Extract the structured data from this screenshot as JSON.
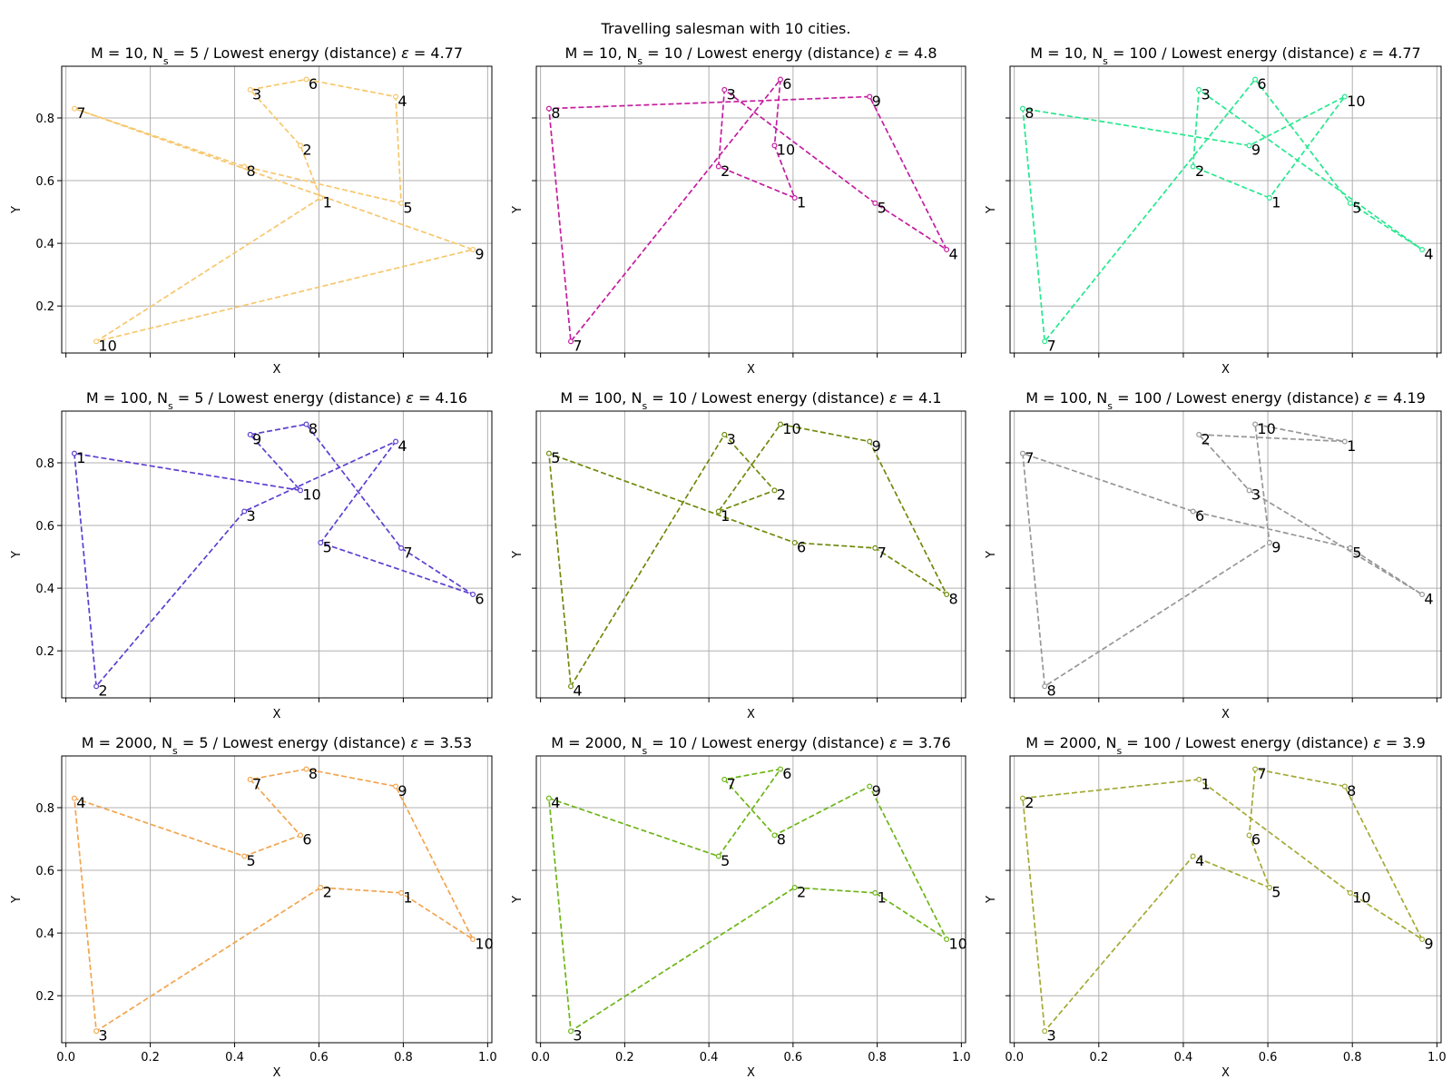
{
  "suptitle": "Travelling salesman with 10 cities.",
  "axes": {
    "xlabel": "X",
    "ylabel": "Y",
    "xlim": [
      -0.01,
      1.01
    ],
    "ylim": [
      0.05,
      0.965
    ],
    "xticks": [
      "0.0",
      "0.2",
      "0.4",
      "0.6",
      "0.8",
      "1.0"
    ],
    "yticks": [
      "0.2",
      "0.4",
      "0.6",
      "0.8"
    ],
    "grid": true
  },
  "cities": {
    "A": [
      0.437,
      0.89
    ],
    "B": [
      0.57,
      0.923
    ],
    "C": [
      0.782,
      0.868
    ],
    "D": [
      0.02,
      0.83
    ],
    "E": [
      0.556,
      0.712
    ],
    "F": [
      0.423,
      0.645
    ],
    "G": [
      0.604,
      0.545
    ],
    "H": [
      0.795,
      0.528
    ],
    "I": [
      0.965,
      0.38
    ],
    "J": [
      0.072,
      0.087
    ]
  },
  "chart_data": [
    {
      "type": "line",
      "title_prefix": "M = 10, N",
      "title_sub": "s",
      "title_mid": " = 5 / Lowest energy (distance) ",
      "title_eps": "ε",
      "title_value": " = 4.77",
      "color": "#f6c76e",
      "route": [
        "G",
        "E",
        "A",
        "B",
        "C",
        "H",
        "F",
        "D",
        "I",
        "J"
      ],
      "labels": [
        "1",
        "2",
        "3",
        "6",
        "4",
        "5",
        "8",
        "7",
        "9",
        "10"
      ]
    },
    {
      "type": "line",
      "title_prefix": "M = 10, N",
      "title_sub": "s",
      "title_mid": " = 10 / Lowest energy (distance) ",
      "title_eps": "ε",
      "title_value": " = 4.8",
      "color": "#c41d9f",
      "route": [
        "G",
        "F",
        "A",
        "H",
        "I",
        "C",
        "D",
        "J",
        "B",
        "E"
      ],
      "labels": [
        "1",
        "2",
        "3",
        "5",
        "4",
        "9",
        "8",
        "7",
        "6",
        "10"
      ]
    },
    {
      "type": "line",
      "title_prefix": "M = 10, N",
      "title_sub": "s",
      "title_mid": " = 100 / Lowest energy (distance) ",
      "title_eps": "ε",
      "title_value": " = 4.77",
      "color": "#27e88f",
      "route": [
        "G",
        "F",
        "A",
        "I",
        "H",
        "B",
        "J",
        "D",
        "E",
        "C"
      ],
      "labels": [
        "1",
        "2",
        "3",
        "4",
        "5",
        "6",
        "7",
        "8",
        "9",
        "10"
      ]
    },
    {
      "type": "line",
      "title_prefix": "M = 100, N",
      "title_sub": "s",
      "title_mid": " = 5 / Lowest energy (distance) ",
      "title_eps": "ε",
      "title_value": " = 4.16",
      "color": "#5d3fcf",
      "route": [
        "D",
        "J",
        "F",
        "C",
        "G",
        "I",
        "H",
        "B",
        "A",
        "E"
      ],
      "labels": [
        "1",
        "2",
        "3",
        "4",
        "5",
        "6",
        "7",
        "8",
        "9",
        "10"
      ]
    },
    {
      "type": "line",
      "title_prefix": "M = 100, N",
      "title_sub": "s",
      "title_mid": " = 10 / Lowest energy (distance) ",
      "title_eps": "ε",
      "title_value": " = 4.1",
      "color": "#6f8a0c",
      "route": [
        "F",
        "E",
        "A",
        "J",
        "D",
        "G",
        "H",
        "I",
        "C",
        "B"
      ],
      "labels": [
        "1",
        "2",
        "3",
        "4",
        "5",
        "6",
        "7",
        "8",
        "9",
        "10"
      ]
    },
    {
      "type": "line",
      "title_prefix": "M = 100, N",
      "title_sub": "s",
      "title_mid": " = 100 / Lowest energy (distance) ",
      "title_eps": "ε",
      "title_value": " = 4.19",
      "color": "#979797",
      "route": [
        "C",
        "A",
        "E",
        "I",
        "H",
        "F",
        "D",
        "J",
        "G",
        "B"
      ],
      "labels": [
        "1",
        "2",
        "3",
        "4",
        "5",
        "6",
        "7",
        "8",
        "9",
        "10"
      ]
    },
    {
      "type": "line",
      "title_prefix": "M = 2000, N",
      "title_sub": "s",
      "title_mid": " = 5 / Lowest energy (distance) ",
      "title_eps": "ε",
      "title_value": " = 3.53",
      "color": "#f2a54f",
      "route": [
        "H",
        "G",
        "J",
        "D",
        "F",
        "E",
        "A",
        "B",
        "C",
        "I"
      ],
      "labels": [
        "1",
        "2",
        "3",
        "4",
        "5",
        "6",
        "7",
        "8",
        "9",
        "10"
      ]
    },
    {
      "type": "line",
      "title_prefix": "M = 2000, N",
      "title_sub": "s",
      "title_mid": " = 10 / Lowest energy (distance) ",
      "title_eps": "ε",
      "title_value": " = 3.76",
      "color": "#6db517",
      "route": [
        "H",
        "G",
        "J",
        "D",
        "F",
        "B",
        "A",
        "E",
        "C",
        "I"
      ],
      "labels": [
        "1",
        "2",
        "3",
        "4",
        "5",
        "6",
        "7",
        "8",
        "9",
        "10"
      ]
    },
    {
      "type": "line",
      "title_prefix": "M = 2000, N",
      "title_sub": "s",
      "title_mid": " = 100 / Lowest energy (distance) ",
      "title_eps": "ε",
      "title_value": " = 3.9",
      "color": "#a3aa35",
      "route": [
        "A",
        "D",
        "J",
        "F",
        "G",
        "E",
        "B",
        "C",
        "I",
        "H"
      ],
      "labels": [
        "1",
        "2",
        "3",
        "4",
        "5",
        "6",
        "7",
        "8",
        "9",
        "10"
      ]
    }
  ]
}
